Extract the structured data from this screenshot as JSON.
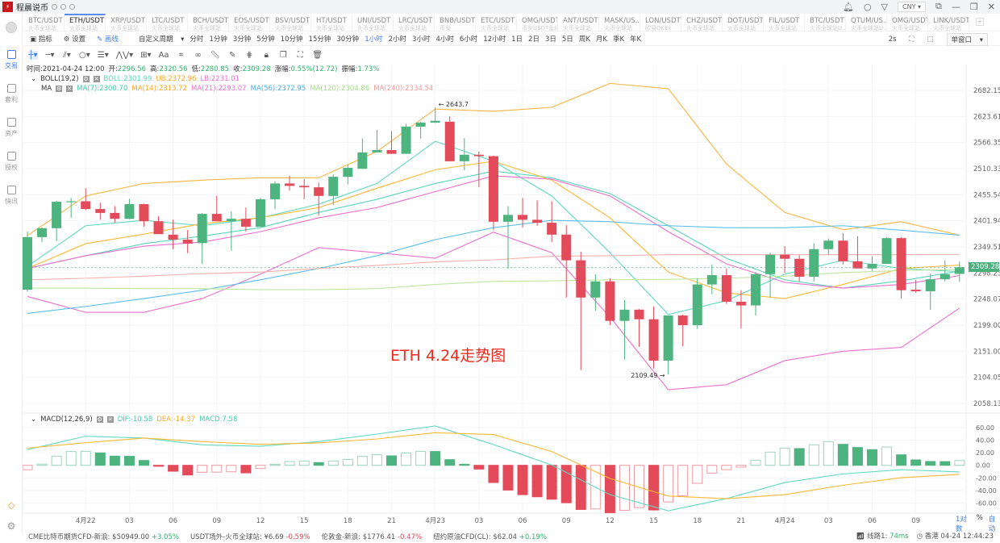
{
  "app": {
    "title": "程晨说币",
    "currency": "CNY"
  },
  "sidebar": {
    "items": [
      {
        "label": "交易",
        "icon": "trade-icon",
        "active": true
      },
      {
        "label": "套利",
        "icon": "arbitrage-icon"
      },
      {
        "label": "资产",
        "icon": "wallet-icon"
      },
      {
        "label": "授权",
        "icon": "key-icon"
      },
      {
        "label": "快讯",
        "icon": "news-icon"
      }
    ]
  },
  "tabs": [
    {
      "symbol": "BTC/USDT",
      "exchange": "火币全球站"
    },
    {
      "symbol": "ETH/USDT",
      "exchange": "火币全球站",
      "active": true
    },
    {
      "symbol": "XRP/USDT",
      "exchange": "火币全球站"
    },
    {
      "symbol": "LTC/USDT",
      "exchange": "火币全球站"
    },
    {
      "symbol": "BCH/USDT",
      "exchange": "火币全球站"
    },
    {
      "symbol": "EOS/USDT",
      "exchange": "火币全球站"
    },
    {
      "symbol": "BSV/USDT",
      "exchange": "火币全球站"
    },
    {
      "symbol": "HT/USDT",
      "exchange": "火币全球站"
    },
    {
      "symbol": "UNI/USDT",
      "exchange": "火币全球站"
    },
    {
      "symbol": "LRC/USDT",
      "exchange": "火币全球站"
    },
    {
      "symbol": "BNB/USDT",
      "exchange": "币安"
    },
    {
      "symbol": "ETC/USDT",
      "exchange": "火币全球站"
    },
    {
      "symbol": "OMG/USDT",
      "exchange": "币安USDT永续"
    },
    {
      "symbol": "ANT/USDT",
      "exchange": "火币全球站"
    },
    {
      "symbol": "MASK/US...",
      "exchange": "火币全球站"
    },
    {
      "symbol": "LON/USDT",
      "exchange": "欧易OKEx"
    },
    {
      "symbol": "CHZ/USDT",
      "exchange": "火币全球站"
    },
    {
      "symbol": "DOT/USDT",
      "exchange": "火币全球站"
    },
    {
      "symbol": "FIL/USDT",
      "exchange": "火币全球站"
    },
    {
      "symbol": "BTC/USDT",
      "exchange": "火币全球站U..."
    },
    {
      "symbol": "QTUM/US...",
      "exchange": "火币全球站U..."
    },
    {
      "symbol": "OMG/USDT",
      "exchange": "火币全球站"
    },
    {
      "symbol": "LINK/USDT",
      "exchange": "火币全球站"
    }
  ],
  "toolbar": {
    "indicator": "指标",
    "settings": "设置",
    "draw": "画线",
    "custom_period": "自定义周期",
    "periods": [
      "分时",
      "1分钟",
      "3分钟",
      "5分钟",
      "10分钟",
      "15分钟",
      "30分钟",
      "1小时",
      "2小时",
      "3小时",
      "4小时",
      "6小时",
      "12小时",
      "1日",
      "2日",
      "3日",
      "5日",
      "周K",
      "月K",
      "季K",
      "年K"
    ],
    "active_period": "1小时",
    "refresh": "2s",
    "window_mode": "单窗口"
  },
  "drawtools": [
    "crosshair-icon",
    "horizontal-line-icon",
    "parallel-lines-icon",
    "circle-icon",
    "fib-icon",
    "wave-icon",
    "measure-icon",
    "text-icon",
    "pattern-icon",
    "link-icon",
    "ruler-icon",
    "pen-icon",
    "more-icon",
    "lock-icon",
    "copy-icon",
    "screenshot-icon",
    "trash-icon"
  ],
  "text_tool": "Aa",
  "info": {
    "time_label": "时间:",
    "time": "2021-04-24 12:00",
    "open_label": "开:",
    "open": "2296.56",
    "high_label": "高:",
    "high": "2320.56",
    "low_label": "低:",
    "low": "2280.85",
    "close_label": "收:",
    "close": "2309.28",
    "change_label": "涨幅:",
    "change": "0.55%(12.72)",
    "amp_label": "振幅:",
    "amp": "1.73%"
  },
  "boll": {
    "name": "BOLL(19,2)",
    "mid": "BOLL:2301.99",
    "ub": "UB:2372.96",
    "lb": "LB:2231.01"
  },
  "ma": {
    "name": "MA",
    "ma7": "MA(7):2300.70",
    "ma14": "MA(14):2313.72",
    "ma21": "MA(21):2293.07",
    "ma56": "MA(56):2372.95",
    "ma120": "MA(120):2304.86",
    "ma240": "MA(240):2334.54"
  },
  "macd_info": {
    "name": "MACD(12,26,9)",
    "dif": "DIF:-10.58",
    "dea": "DEA:-14.37",
    "macd": "MACD:7.58"
  },
  "annotation": "ETH 4.24走势图",
  "axis_controls": {
    "log": "1对数",
    "percent": "%",
    "auto": "自动"
  },
  "status": {
    "items": [
      {
        "name": "CME比特币期货CFD-新浪:",
        "value": "$50949.00",
        "change": "+3.05%",
        "dir": "up"
      },
      {
        "name": "USDT场外-火币全球站:",
        "value": "¥6.69",
        "change": "-0.59%",
        "dir": "dn"
      },
      {
        "name": "伦敦金-新浪:",
        "value": "$1776.41",
        "change": "-0.47%",
        "dir": "dn"
      },
      {
        "name": "纽约原油CFD(CL):",
        "value": "$62.04",
        "change": "+0.19%",
        "dir": "up"
      }
    ],
    "line": "线路1:",
    "latency": "74ms",
    "clock": "香港 04-24 12:44:23"
  },
  "colors": {
    "up": "#4db37f",
    "down": "#e34a5a",
    "boll": "#58d6b8",
    "ub": "#f9b53f",
    "lb": "#ee6fcf",
    "ma7": "#5fd9c0",
    "ma14": "#ffb833",
    "ma21": "#ee6fcf",
    "ma56": "#5bbdf0",
    "ma120": "#bfe6a0",
    "ma240": "#f8b0ab",
    "dif": "#5fd9c0",
    "dea": "#ffb833"
  },
  "chart_data": [
    {
      "type": "candlestick",
      "interval": "1小时",
      "scale": "log",
      "y_ticks": [
        "2058.13",
        "2104.05",
        "2151.00",
        "2199.00",
        "2248.07",
        "2298.23",
        "2349.51",
        "2401.94",
        "2455.54",
        "2510.33",
        "2566.35",
        "2623.61",
        "2682.15"
      ],
      "x_ticks": [
        {
          "t": "04-22 00:00",
          "label": "4月22"
        },
        {
          "t": "04-22 03:00",
          "label": "03"
        },
        {
          "t": "04-22 06:00",
          "label": "06"
        },
        {
          "t": "04-22 09:00",
          "label": "09"
        },
        {
          "t": "04-22 12:00",
          "label": "12"
        },
        {
          "t": "04-22 15:00",
          "label": "15"
        },
        {
          "t": "04-22 18:00",
          "label": "18"
        },
        {
          "t": "04-22 21:00",
          "label": "21"
        },
        {
          "t": "04-23 00:00",
          "label": "4月23"
        },
        {
          "t": "04-23 03:00",
          "label": "03"
        },
        {
          "t": "04-23 06:00",
          "label": "06"
        },
        {
          "t": "04-23 09:00",
          "label": "09"
        },
        {
          "t": "04-23 12:00",
          "label": "12"
        },
        {
          "t": "04-23 15:00",
          "label": "15"
        },
        {
          "t": "04-23 18:00",
          "label": "18"
        },
        {
          "t": "04-23 21:00",
          "label": "21"
        },
        {
          "t": "04-24 00:00",
          "label": "4月24"
        },
        {
          "t": "04-24 03:00",
          "label": "03"
        },
        {
          "t": "04-24 06:00",
          "label": "06"
        },
        {
          "t": "04-24 09:00",
          "label": "09"
        }
      ],
      "last_price": "2309.28",
      "high_mark": {
        "t": "04-23 00:00",
        "value": "2643.7"
      },
      "low_mark": {
        "t": "04-23 16:00",
        "value": "2109.49"
      },
      "candles": [
        [
          "04-21 20:00",
          2266,
          2380,
          2262,
          2369
        ],
        [
          "04-21 21:00",
          2369,
          2389,
          2359,
          2387
        ],
        [
          "04-21 22:00",
          2387,
          2443,
          2361,
          2441
        ],
        [
          "04-21 23:00",
          2441,
          2449,
          2408,
          2442
        ],
        [
          "04-22 00:00",
          2442,
          2469,
          2424,
          2426
        ],
        [
          "04-22 01:00",
          2426,
          2439,
          2404,
          2418
        ],
        [
          "04-22 02:00",
          2418,
          2432,
          2398,
          2406
        ],
        [
          "04-22 03:00",
          2406,
          2447,
          2405,
          2436
        ],
        [
          "04-22 04:00",
          2436,
          2437,
          2390,
          2401
        ],
        [
          "04-22 05:00",
          2401,
          2411,
          2375,
          2375
        ],
        [
          "04-22 06:00",
          2374,
          2404,
          2345,
          2364
        ],
        [
          "04-22 07:00",
          2364,
          2383,
          2337,
          2356
        ],
        [
          "04-22 08:00",
          2357,
          2418,
          2316,
          2416
        ],
        [
          "04-22 09:00",
          2416,
          2453,
          2401,
          2401
        ],
        [
          "04-22 10:00",
          2401,
          2421,
          2342,
          2406
        ],
        [
          "04-22 11:00",
          2406,
          2429,
          2380,
          2390
        ],
        [
          "04-22 12:00",
          2390,
          2449,
          2389,
          2446
        ],
        [
          "04-22 13:00",
          2446,
          2484,
          2426,
          2479
        ],
        [
          "04-22 14:00",
          2479,
          2495,
          2464,
          2474
        ],
        [
          "04-22 15:00",
          2474,
          2488,
          2446,
          2471
        ],
        [
          "04-22 16:00",
          2471,
          2481,
          2413,
          2453
        ],
        [
          "04-22 17:00",
          2453,
          2498,
          2434,
          2493
        ],
        [
          "04-22 18:00",
          2493,
          2519,
          2477,
          2512
        ],
        [
          "04-22 19:00",
          2510,
          2575,
          2510,
          2545
        ],
        [
          "04-22 20:00",
          2545,
          2594,
          2545,
          2550
        ],
        [
          "04-22 21:00",
          2550,
          2591,
          2542,
          2542
        ],
        [
          "04-22 22:00",
          2542,
          2607,
          2542,
          2601
        ],
        [
          "04-22 23:00",
          2601,
          2612,
          2575,
          2610
        ],
        [
          "04-23 00:00",
          2610,
          2643.7,
          2609,
          2614
        ],
        [
          "04-23 01:00",
          2612,
          2624,
          2526,
          2526
        ],
        [
          "04-23 02:00",
          2526,
          2576,
          2507,
          2540
        ],
        [
          "04-23 03:00",
          2540,
          2547,
          2471,
          2537
        ],
        [
          "04-23 04:00",
          2537,
          2538,
          2383,
          2400
        ],
        [
          "04-23 05:00",
          2400,
          2432,
          2306,
          2414
        ],
        [
          "04-23 06:00",
          2414,
          2449,
          2388,
          2404
        ],
        [
          "04-23 07:00",
          2404,
          2444,
          2392,
          2398
        ],
        [
          "04-23 08:00",
          2398,
          2442,
          2359,
          2374
        ],
        [
          "04-23 09:00",
          2374,
          2393,
          2251,
          2323
        ],
        [
          "04-23 10:00",
          2323,
          2340,
          2117,
          2251
        ],
        [
          "04-23 11:00",
          2251,
          2296,
          2226,
          2282
        ],
        [
          "04-23 12:00",
          2282,
          2288,
          2199,
          2207
        ],
        [
          "04-23 13:00",
          2207,
          2246,
          2136,
          2228
        ],
        [
          "04-23 14:00",
          2228,
          2229,
          2159,
          2210
        ],
        [
          "04-23 15:00",
          2210,
          2234,
          2120,
          2134
        ],
        [
          "04-23 16:00",
          2134,
          2217,
          2109.49,
          2217
        ],
        [
          "04-23 17:00",
          2217,
          2219,
          2160,
          2199
        ],
        [
          "04-23 18:00",
          2199,
          2288,
          2192,
          2276
        ],
        [
          "04-23 19:00",
          2276,
          2315,
          2257,
          2294
        ],
        [
          "04-23 20:00",
          2294,
          2307,
          2239,
          2243
        ],
        [
          "04-23 21:00",
          2243,
          2265,
          2193,
          2236
        ],
        [
          "04-23 22:00",
          2236,
          2300,
          2217,
          2296
        ],
        [
          "04-23 23:00",
          2296,
          2338,
          2251,
          2334
        ],
        [
          "04-24 00:00",
          2334,
          2351,
          2299,
          2326
        ],
        [
          "04-24 01:00",
          2326,
          2333,
          2282,
          2291
        ],
        [
          "04-24 02:00",
          2291,
          2357,
          2282,
          2345
        ],
        [
          "04-24 03:00",
          2345,
          2366,
          2334,
          2362
        ],
        [
          "04-24 04:00",
          2362,
          2377,
          2315,
          2321
        ],
        [
          "04-24 05:00",
          2321,
          2371,
          2307,
          2307
        ],
        [
          "04-24 06:00",
          2307,
          2331,
          2302,
          2316
        ],
        [
          "04-24 07:00",
          2316,
          2369,
          2316,
          2367
        ],
        [
          "04-24 08:00",
          2367,
          2369,
          2249,
          2265
        ],
        [
          "04-24 09:00",
          2266,
          2285,
          2260,
          2263
        ],
        [
          "04-24 10:00",
          2263,
          2297,
          2228,
          2286
        ],
        [
          "04-24 11:00",
          2286,
          2323,
          2282,
          2296
        ],
        [
          "04-24 12:00",
          2296.56,
          2320.56,
          2280.85,
          2309.28
        ]
      ],
      "overlay_t": [
        "04-21 20:00",
        "04-22 00:00",
        "04-22 04:00",
        "04-22 08:00",
        "04-22 12:00",
        "04-22 16:00",
        "04-22 20:00",
        "04-23 00:00",
        "04-23 04:00",
        "04-23 08:00",
        "04-23 12:00",
        "04-23 16:00",
        "04-23 20:00",
        "04-24 00:00",
        "04-24 04:00",
        "04-24 08:00",
        "04-24 12:00"
      ],
      "overlays": [
        {
          "name": "UB",
          "color_key": "ub",
          "values": [
            2372,
            2453,
            2479,
            2486,
            2491,
            2491,
            2547,
            2640,
            2635,
            2644,
            2698,
            2686,
            2520,
            2419,
            2384,
            2400,
            2372.96
          ]
        },
        {
          "name": "BOLL",
          "color_key": "boll",
          "values": [
            2307,
            2332,
            2356,
            2371,
            2388,
            2419,
            2446,
            2479,
            2505,
            2491,
            2458,
            2392,
            2327,
            2285,
            2269,
            2283,
            2301.99
          ]
        },
        {
          "name": "LB",
          "color_key": "lb",
          "values": [
            2253,
            2223,
            2223,
            2249,
            2296,
            2348,
            2338,
            2327,
            2379,
            2338,
            2214,
            2082,
            2091,
            2134,
            2151,
            2158,
            2231.01
          ]
        },
        {
          "name": "MA(7)",
          "color_key": "ma7",
          "values": [
            2311,
            2392,
            2403,
            2392,
            2408,
            2436,
            2479,
            2569,
            2526,
            2453,
            2338,
            2219,
            2245,
            2296,
            2323,
            2307,
            2300.7
          ]
        },
        {
          "name": "MA(14)",
          "color_key": "ma14",
          "values": [
            2307,
            2356,
            2375,
            2396,
            2408,
            2429,
            2469,
            2508,
            2526,
            2486,
            2408,
            2300,
            2260,
            2249,
            2276,
            2307,
            2313.72
          ]
        },
        {
          "name": "MA(21)",
          "color_key": "ma21",
          "values": [
            2307,
            2332,
            2351,
            2359,
            2380,
            2408,
            2429,
            2462,
            2495,
            2488,
            2453,
            2380,
            2316,
            2280,
            2269,
            2276,
            2293.07
          ]
        },
        {
          "name": "MA(56)",
          "color_key": "ma56",
          "values": [
            2221,
            2234,
            2249,
            2265,
            2285,
            2307,
            2332,
            2364,
            2388,
            2403,
            2400,
            2392,
            2388,
            2388,
            2392,
            2383,
            2372.95
          ]
        },
        {
          "name": "MA(120)",
          "color_key": "ma120",
          "values": [
            2269,
            2269,
            2268,
            2268,
            2266,
            2266,
            2268,
            2276,
            2282,
            2283,
            2285,
            2286,
            2288,
            2292,
            2299,
            2303,
            2304.86
          ]
        },
        {
          "name": "MA(240)",
          "color_key": "ma240",
          "values": [
            2285,
            2288,
            2292,
            2297,
            2300,
            2307,
            2313,
            2320,
            2324,
            2331,
            2332,
            2334,
            2334,
            2334,
            2334,
            2334,
            2334.54
          ]
        }
      ]
    },
    {
      "type": "bar",
      "indicator": "MACD(12,26,9)",
      "y_ticks": [
        "60.00",
        "40.00",
        "20.00",
        "0.00",
        "-20.00",
        "-40.00",
        "-60.00"
      ],
      "histogram": [
        -7,
        2,
        14.6,
        21.9,
        22.3,
        19.7,
        14.6,
        14.3,
        7.7,
        -1.5,
        -9.4,
        -15.4,
        -11.1,
        -10.9,
        -10.3,
        -12,
        -5.1,
        1.7,
        6,
        6.9,
        4.3,
        6.9,
        9.4,
        14.1,
        17.1,
        15,
        19.7,
        22.3,
        22,
        9,
        1.7,
        -6,
        -27.4,
        -39.4,
        -46.7,
        -50.1,
        -54,
        -59.6,
        -70.3,
        -69.5,
        -75.4,
        -71.6,
        -67.3,
        -71.1,
        -58.3,
        -48.4,
        -28.7,
        -12.4,
        -6.9,
        -3,
        8.1,
        21,
        27.4,
        26.6,
        32.6,
        37.7,
        33.4,
        28.3,
        24.9,
        29.1,
        16.7,
        8.6,
        6,
        5.9,
        7.58
      ],
      "dif": [
        24.9,
        46.3,
        43.3,
        32.6,
        30.4,
        37.7,
        49.7,
        62.6,
        33,
        0.4,
        -46.7,
        -72.4,
        -53,
        -27.4,
        -13.7,
        -6.9,
        -10.58
      ],
      "dea": [
        27.4,
        36,
        43.3,
        37.7,
        33.4,
        35.6,
        42,
        51.9,
        49,
        21.9,
        -21,
        -48.9,
        -53.1,
        -46.7,
        -31.7,
        -19.7,
        -14.37
      ]
    }
  ]
}
